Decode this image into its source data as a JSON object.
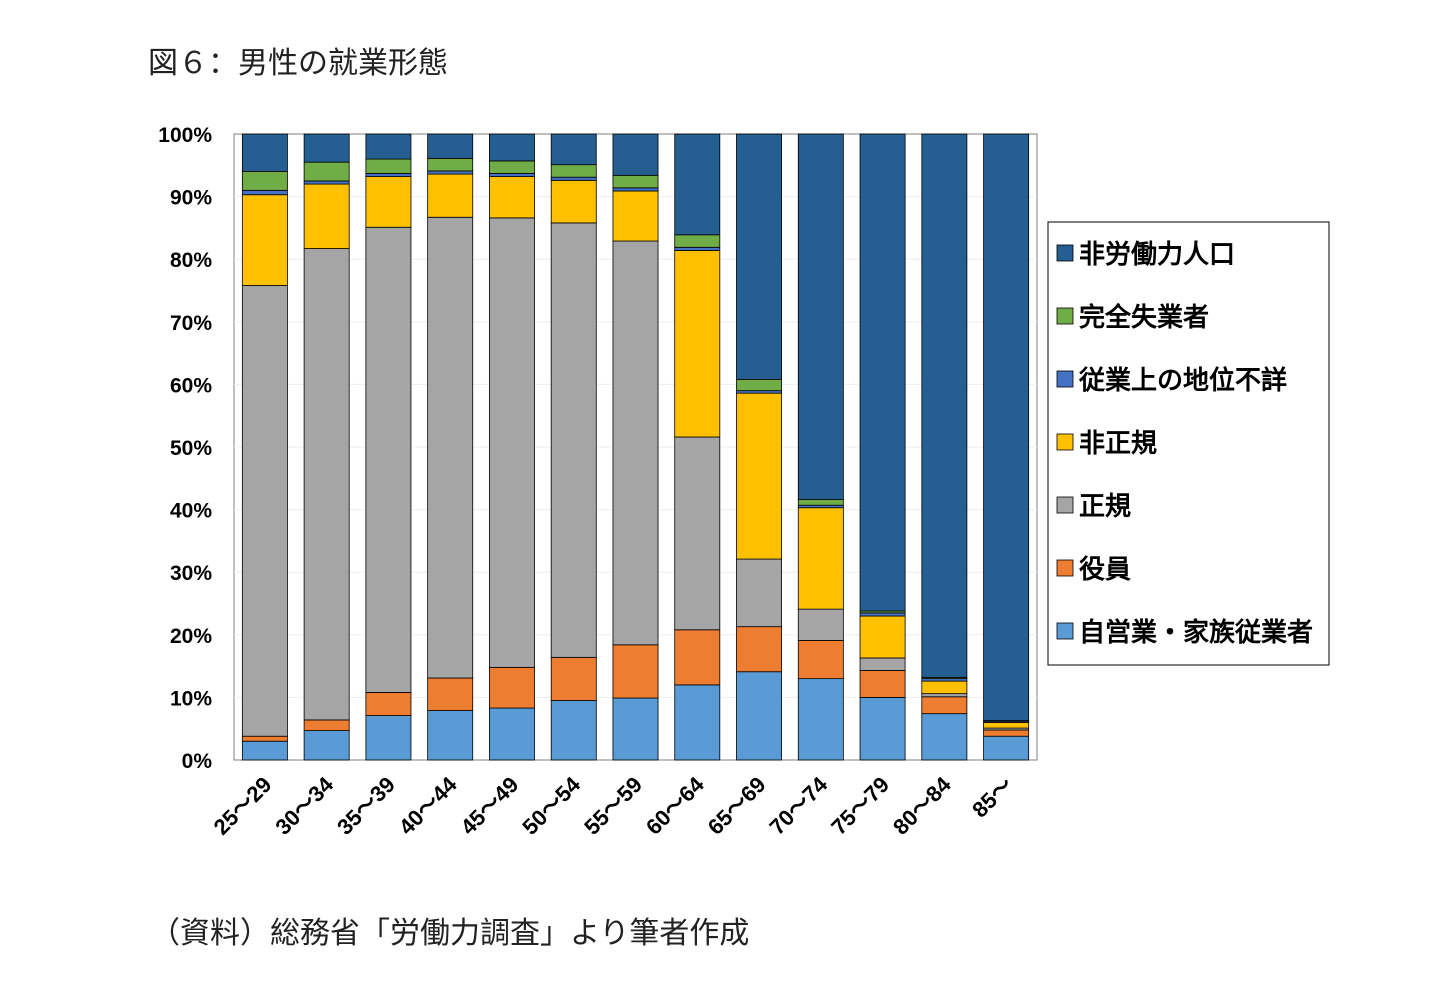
{
  "title": "図６：男性の就業形態",
  "source": "（資料）総務省「労働力調査」より筆者作成",
  "chart_data": {
    "type": "bar",
    "stacked": true,
    "normalized_percent": true,
    "ylim": [
      0,
      100
    ],
    "y_ticks": [
      "0%",
      "10%",
      "20%",
      "30%",
      "40%",
      "50%",
      "60%",
      "70%",
      "80%",
      "90%",
      "100%"
    ],
    "categories": [
      "25～29",
      "30～34",
      "35～39",
      "40～44",
      "45～49",
      "50～54",
      "55～59",
      "60～64",
      "65～69",
      "70～74",
      "75～79",
      "80～84",
      "85～"
    ],
    "legend_position": "right",
    "grid": false,
    "series": [
      {
        "name": "自営業・家族従業者",
        "color": "#5B9BD5",
        "values": [
          3.0,
          4.7,
          7.1,
          7.9,
          8.3,
          9.5,
          9.9,
          12.0,
          14.1,
          13.0,
          10.0,
          7.4,
          3.8
        ]
      },
      {
        "name": "役員",
        "color": "#ED7D31",
        "values": [
          0.8,
          1.7,
          3.7,
          5.2,
          6.5,
          6.9,
          8.5,
          8.8,
          7.2,
          6.1,
          4.3,
          2.7,
          1.0
        ]
      },
      {
        "name": "正規",
        "color": "#A5A5A5",
        "values": [
          72.0,
          75.3,
          74.3,
          73.6,
          71.8,
          69.4,
          64.5,
          30.8,
          10.8,
          5.0,
          2.0,
          0.5,
          0.3
        ]
      },
      {
        "name": "非正規",
        "color": "#FFC000",
        "values": [
          14.5,
          10.3,
          8.1,
          6.9,
          6.6,
          6.8,
          8.0,
          29.8,
          26.5,
          16.2,
          6.7,
          2.0,
          0.9
        ]
      },
      {
        "name": "従業上の地位不詳",
        "color": "#4472C4",
        "values": [
          0.7,
          0.5,
          0.5,
          0.5,
          0.5,
          0.5,
          0.5,
          0.5,
          0.4,
          0.4,
          0.5,
          0.4,
          0.2
        ]
      },
      {
        "name": "完全失業者",
        "color": "#70AD47",
        "values": [
          3.0,
          3.0,
          2.3,
          2.0,
          2.0,
          2.0,
          2.0,
          2.0,
          1.8,
          0.9,
          0.3,
          0.2,
          0.1
        ]
      },
      {
        "name": "非労働力人口",
        "color": "#255E91",
        "values": [
          6.0,
          4.5,
          4.0,
          3.9,
          4.3,
          4.9,
          6.6,
          16.1,
          39.2,
          58.4,
          76.2,
          86.8,
          93.7
        ]
      }
    ]
  }
}
